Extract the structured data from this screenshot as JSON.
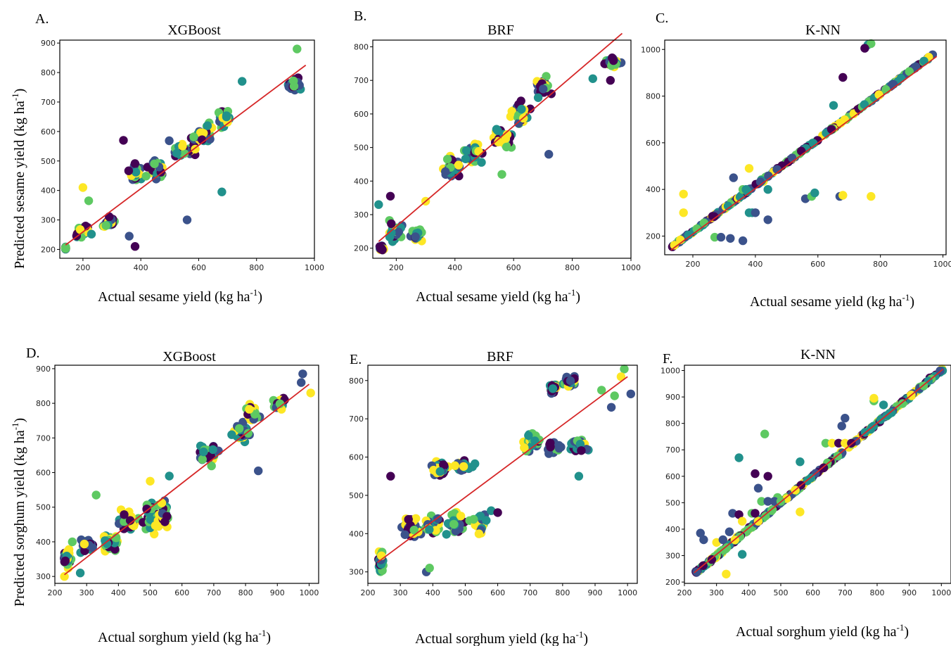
{
  "figure": {
    "ylabel_top": "Predicted sesame yield (kg ha",
    "ylabel_bottom": "Predicted sorghum yield (kg ha",
    "unit_superscript": "-1",
    "unit_close": ")"
  },
  "colors": {
    "fit_line": "#d62728",
    "palette": [
      "#440154",
      "#3b528b",
      "#21918c",
      "#5ec962",
      "#fde725"
    ]
  },
  "chart_data": [
    {
      "id": "A",
      "letter": "A.",
      "title": "XGBoost",
      "type": "scatter",
      "xlabel": "Actual sesame yield (kg ha",
      "xlim": [
        120,
        1000
      ],
      "ylim": [
        170,
        910
      ],
      "xticks": [
        200,
        400,
        600,
        800,
        1000
      ],
      "yticks": [
        200,
        300,
        400,
        500,
        600,
        700,
        800,
        900
      ],
      "fit": [
        [
          140,
          215
        ],
        [
          970,
          825
        ]
      ],
      "clusters": [
        [
          140,
          205,
          1,
          8
        ],
        [
          200,
          260,
          40,
          30
        ],
        [
          290,
          290,
          30,
          22
        ],
        [
          380,
          450,
          30,
          55
        ],
        [
          450,
          470,
          50,
          45
        ],
        [
          550,
          540,
          60,
          45
        ],
        [
          620,
          590,
          50,
          50
        ],
        [
          690,
          640,
          40,
          50
        ],
        [
          930,
          760,
          35,
          30
        ]
      ],
      "extra": [
        [
          940,
          880
        ],
        [
          380,
          210
        ],
        [
          560,
          300
        ],
        [
          680,
          395
        ],
        [
          200,
          410
        ],
        [
          750,
          770
        ],
        [
          360,
          245
        ],
        [
          340,
          570
        ],
        [
          220,
          365
        ]
      ],
      "seed": 11
    },
    {
      "id": "B",
      "letter": "B.",
      "title": "BRF",
      "type": "scatter",
      "xlabel": "Actual sesame yield (kg ha",
      "xlim": [
        120,
        1000
      ],
      "ylim": [
        170,
        820
      ],
      "xticks": [
        200,
        400,
        600,
        800,
        1000
      ],
      "yticks": [
        200,
        300,
        400,
        500,
        600,
        700,
        800
      ],
      "fit": [
        [
          140,
          220
        ],
        [
          970,
          840
        ]
      ],
      "clusters": [
        [
          150,
          200,
          12,
          10
        ],
        [
          200,
          250,
          40,
          35
        ],
        [
          270,
          240,
          30,
          25
        ],
        [
          390,
          440,
          40,
          60
        ],
        [
          460,
          480,
          40,
          45
        ],
        [
          560,
          530,
          50,
          45
        ],
        [
          620,
          600,
          50,
          60
        ],
        [
          700,
          680,
          40,
          45
        ],
        [
          940,
          755,
          35,
          25
        ]
      ],
      "extra": [
        [
          920,
          845
        ],
        [
          180,
          355
        ],
        [
          140,
          330
        ],
        [
          560,
          420
        ],
        [
          720,
          480
        ],
        [
          870,
          705
        ],
        [
          930,
          700
        ],
        [
          300,
          340
        ]
      ],
      "seed": 23
    },
    {
      "id": "C",
      "letter": "C.",
      "title": "K-NN",
      "type": "scatter",
      "xlabel": "Actual sesame yield (kg ha",
      "xlim": [
        110,
        1010
      ],
      "ylim": [
        120,
        1040
      ],
      "xticks": [
        200,
        400,
        600,
        800,
        1000
      ],
      "yticks": [
        200,
        400,
        600,
        800,
        1000
      ],
      "fit": [
        [
          130,
          140
        ],
        [
          980,
          970
        ]
      ],
      "diag": [
        130,
        975,
        150,
        985,
        260
      ],
      "extra": [
        [
          760,
          1020
        ],
        [
          770,
          1025
        ],
        [
          750,
          1005
        ],
        [
          680,
          880
        ],
        [
          650,
          760
        ],
        [
          380,
          490
        ],
        [
          170,
          380
        ],
        [
          170,
          300
        ],
        [
          270,
          195
        ],
        [
          290,
          195
        ],
        [
          360,
          180
        ],
        [
          320,
          190
        ],
        [
          380,
          300
        ],
        [
          390,
          300
        ],
        [
          400,
          300
        ],
        [
          360,
          400
        ],
        [
          370,
          400
        ],
        [
          440,
          400
        ],
        [
          440,
          270
        ],
        [
          560,
          360
        ],
        [
          580,
          370
        ],
        [
          590,
          385
        ],
        [
          670,
          370
        ],
        [
          680,
          375
        ],
        [
          770,
          370
        ],
        [
          330,
          450
        ]
      ],
      "seed": 37
    },
    {
      "id": "D",
      "letter": "D.",
      "title": "XGBoost",
      "type": "scatter",
      "xlabel": "Actual sorghum yield (kg ha",
      "xlim": [
        200,
        1030
      ],
      "ylim": [
        280,
        910
      ],
      "xticks": [
        200,
        300,
        400,
        500,
        600,
        700,
        800,
        900,
        1000
      ],
      "yticks": [
        300,
        400,
        500,
        600,
        700,
        800,
        900
      ],
      "fit": [
        [
          230,
          305
        ],
        [
          1000,
          855
        ]
      ],
      "clusters": [
        [
          240,
          350,
          15,
          40
        ],
        [
          300,
          390,
          30,
          30
        ],
        [
          370,
          400,
          40,
          40
        ],
        [
          430,
          460,
          40,
          50
        ],
        [
          500,
          470,
          40,
          55
        ],
        [
          540,
          480,
          30,
          50
        ],
        [
          680,
          650,
          40,
          40
        ],
        [
          790,
          720,
          40,
          40
        ],
        [
          820,
          770,
          30,
          35
        ],
        [
          900,
          800,
          30,
          30
        ]
      ],
      "extra": [
        [
          980,
          885
        ],
        [
          975,
          860
        ],
        [
          1005,
          830
        ],
        [
          840,
          605
        ],
        [
          330,
          535
        ],
        [
          500,
          575
        ],
        [
          560,
          590
        ],
        [
          230,
          300
        ],
        [
          255,
          400
        ],
        [
          280,
          310
        ]
      ],
      "seed": 41
    },
    {
      "id": "E",
      "letter": "E.",
      "title": "BRF",
      "type": "scatter",
      "xlabel": "Actual sorghum yield (kg ha",
      "xlim": [
        200,
        1030
      ],
      "ylim": [
        270,
        840
      ],
      "xticks": [
        200,
        300,
        400,
        500,
        600,
        700,
        800,
        900,
        1000
      ],
      "yticks": [
        300,
        400,
        500,
        600,
        700,
        800
      ],
      "fit": [
        [
          230,
          325
        ],
        [
          1000,
          810
        ]
      ],
      "clusters": [
        [
          240,
          330,
          10,
          50
        ],
        [
          330,
          420,
          40,
          35
        ],
        [
          400,
          420,
          40,
          40
        ],
        [
          470,
          430,
          40,
          40
        ],
        [
          540,
          430,
          40,
          40
        ],
        [
          420,
          570,
          40,
          25
        ],
        [
          500,
          575,
          35,
          25
        ],
        [
          700,
          640,
          40,
          30
        ],
        [
          770,
          625,
          30,
          25
        ],
        [
          850,
          630,
          40,
          25
        ],
        [
          770,
          780,
          20,
          20
        ],
        [
          820,
          800,
          30,
          20
        ]
      ],
      "extra": [
        [
          860,
          840
        ],
        [
          990,
          830
        ],
        [
          980,
          810
        ],
        [
          1010,
          765
        ],
        [
          960,
          760
        ],
        [
          950,
          730
        ],
        [
          850,
          550
        ],
        [
          270,
          550
        ],
        [
          380,
          300
        ],
        [
          390,
          310
        ],
        [
          920,
          775
        ],
        [
          580,
          460
        ],
        [
          600,
          455
        ]
      ],
      "seed": 53
    },
    {
      "id": "F",
      "letter": "F.",
      "title": "K-NN",
      "type": "scatter",
      "xlabel": "Actual sorghum yield (kg ha",
      "xlim": [
        200,
        1030
      ],
      "ylim": [
        195,
        1020
      ],
      "xticks": [
        200,
        300,
        400,
        500,
        600,
        700,
        800,
        900,
        1000
      ],
      "yticks": [
        200,
        300,
        400,
        500,
        600,
        700,
        800,
        900,
        1000
      ],
      "fit": [
        [
          230,
          235
        ],
        [
          1005,
          1005
        ]
      ],
      "diag": [
        230,
        1005,
        230,
        1005,
        300
      ],
      "extra": [
        [
          250,
          385
        ],
        [
          260,
          360
        ],
        [
          330,
          230
        ],
        [
          370,
          670
        ],
        [
          380,
          305
        ],
        [
          420,
          610
        ],
        [
          450,
          760
        ],
        [
          460,
          600
        ],
        [
          490,
          520
        ],
        [
          560,
          465
        ],
        [
          560,
          655
        ],
        [
          690,
          790
        ],
        [
          700,
          820
        ],
        [
          790,
          885
        ],
        [
          790,
          895
        ],
        [
          820,
          870
        ],
        [
          640,
          725
        ],
        [
          660,
          725
        ],
        [
          680,
          725
        ],
        [
          700,
          725
        ],
        [
          720,
          725
        ],
        [
          410,
          460
        ],
        [
          420,
          460
        ],
        [
          440,
          505
        ],
        [
          460,
          505
        ],
        [
          480,
          505
        ],
        [
          500,
          505
        ],
        [
          350,
          460
        ],
        [
          370,
          455
        ],
        [
          380,
          430
        ],
        [
          300,
          350
        ],
        [
          320,
          360
        ],
        [
          340,
          390
        ],
        [
          430,
          555
        ]
      ],
      "seed": 67
    }
  ]
}
